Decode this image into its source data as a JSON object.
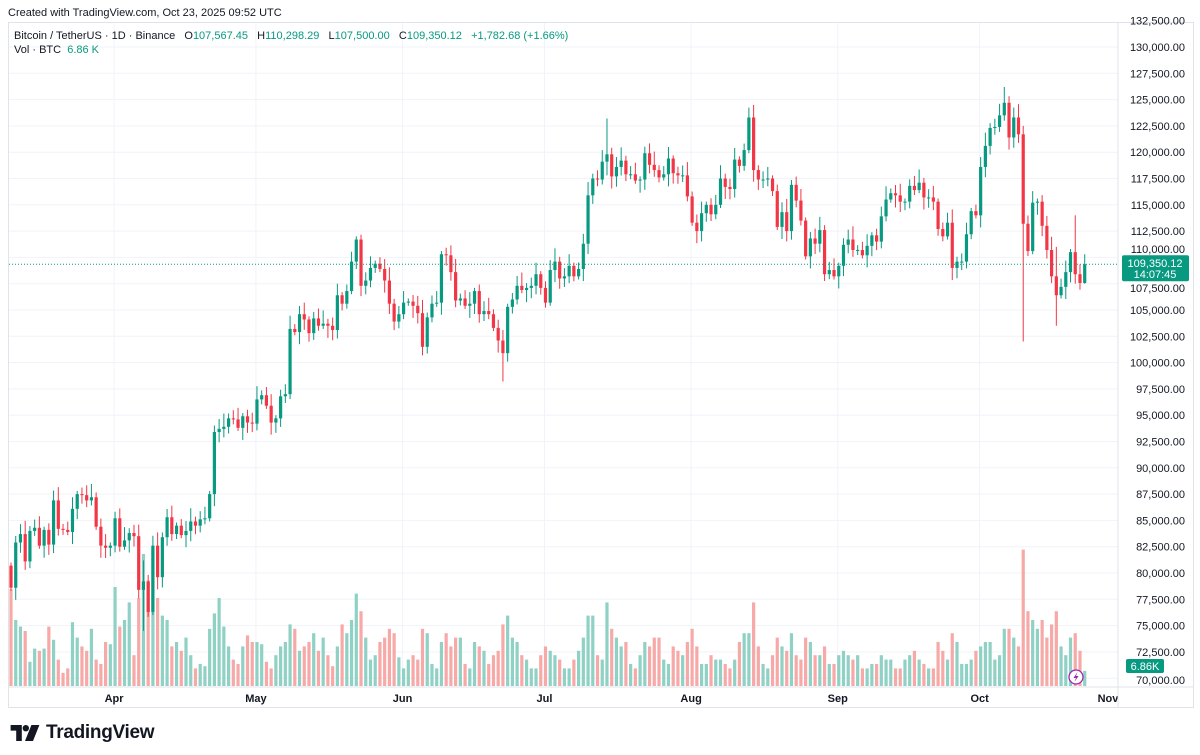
{
  "created_text": "Created with TradingView.com, Oct 23, 2025 09:52 UTC",
  "legend": {
    "symbol": "Bitcoin / TetherUS · 1D · Binance",
    "o_label": "O",
    "o": "107,567.45",
    "h_label": "H",
    "h": "110,298.29",
    "l_label": "L",
    "l": "107,500.00",
    "c_label": "C",
    "c": "109,350.12",
    "change": "+1,782.68 (+1.66%)",
    "vol_label": "Vol · BTC",
    "vol": "6.86 K"
  },
  "price_label": {
    "price": "109,350.12",
    "countdown": "14:07:45"
  },
  "volume_label": "6.86K",
  "brand": "TradingView",
  "colors": {
    "up": "#089981",
    "down": "#f23645",
    "up_volume": "#8fd1c4",
    "down_volume": "#f7a9a7",
    "grid": "#f0f3fa",
    "alert_icon": "#9c27b0"
  },
  "icons": {
    "alert": "lightning-icon",
    "logo": "tradingview-logo"
  },
  "chart_data": {
    "type": "candlestick",
    "symbol": "BTCUSDT",
    "interval": "1D",
    "first_date": "2025-03-10",
    "first_open": 80700,
    "close": [
      78600,
      82900,
      83700,
      81100,
      84000,
      84300,
      82600,
      84100,
      82700,
      86900,
      84200,
      84100,
      83900,
      86100,
      87500,
      87400,
      86900,
      87200,
      84400,
      82600,
      82400,
      82600,
      85200,
      82500,
      83100,
      83800,
      83500,
      78400,
      79200,
      76300,
      82600,
      79600,
      83400,
      85300,
      83700,
      84500,
      83600,
      84000,
      84900,
      84500,
      85100,
      85200,
      87500,
      93400,
      93700,
      93900,
      94700,
      94600,
      93800,
      94900,
      94300,
      94200,
      96500,
      96900,
      95900,
      94300,
      94700,
      96800,
      97000,
      103200,
      102900,
      104600,
      104100,
      102800,
      104200,
      103500,
      103700,
      103500,
      103100,
      106400,
      105600,
      106800,
      109600,
      111700,
      107300,
      107800,
      109000,
      109400,
      108900,
      107800,
      105600,
      103900,
      104600,
      105700,
      105800,
      105400,
      104700,
      101500,
      104300,
      105600,
      105700,
      110300,
      110200,
      108600,
      105900,
      106100,
      105400,
      105600,
      106800,
      104600,
      104900,
      104600,
      103300,
      102100,
      100900,
      105300,
      106000,
      107300,
      106900,
      107100,
      107300,
      108400,
      107100,
      105700,
      108800,
      109600,
      108000,
      108200,
      109200,
      108200,
      108900,
      111300,
      115900,
      117500,
      117400,
      119100,
      119800,
      117700,
      118600,
      119200,
      117900,
      117900,
      117300,
      117400,
      119900,
      118800,
      118300,
      117600,
      117900,
      119400,
      118000,
      117800,
      117800,
      115800,
      113300,
      112500,
      114200,
      115000,
      114100,
      115000,
      117500,
      116700,
      116500,
      119300,
      118700,
      120200,
      123300,
      118300,
      117400,
      117400,
      117500,
      116300,
      112900,
      114300,
      112500,
      116900,
      115400,
      113500,
      110100,
      111800,
      111300,
      112600,
      108400,
      108800,
      108200,
      109200,
      111200,
      111700,
      110700,
      110700,
      110200,
      111100,
      112100,
      111500,
      113900,
      115500,
      116100,
      115900,
      115300,
      115300,
      116800,
      116400,
      117100,
      115700,
      115700,
      115300,
      112700,
      112000,
      113300,
      109000,
      109600,
      109600,
      112200,
      114400,
      114000,
      118600,
      120600,
      122300,
      122400,
      123500,
      124700,
      121400,
      123300,
      121700,
      113200,
      110600,
      115200,
      115300,
      113000,
      110700,
      108200,
      106400,
      107200,
      108600,
      110500,
      108400,
      107567,
      109350
    ],
    "notable_extremes": {
      "2025-04-07": {
        "high": 81200,
        "low": 74500
      },
      "2025-05-22": {
        "high": 112000,
        "low": 108900
      },
      "2025-06-22": {
        "high": 103100,
        "low": 98200
      },
      "2025-07-14": {
        "high": 123200,
        "low": 117800
      },
      "2025-08-14": {
        "high": 124500,
        "low": 117200
      },
      "2025-10-06": {
        "high": 126200,
        "low": 123000
      },
      "2025-10-10": {
        "high": 122500,
        "low": 102000
      },
      "2025-10-17": {
        "high": 111000,
        "low": 103500
      },
      "2025-10-21": {
        "high": 114000,
        "low": 107500
      },
      "2025-10-23": {
        "high": 110298.29,
        "low": 107500
      }
    },
    "volume_thousands_btc": [
      44,
      30,
      27,
      25,
      11,
      17,
      16,
      17,
      27,
      21,
      12,
      6,
      8,
      29,
      22,
      18,
      16,
      26,
      12,
      10,
      20,
      19,
      45,
      27,
      30,
      38,
      14,
      40,
      60,
      48,
      62,
      40,
      32,
      30,
      18,
      20,
      16,
      22,
      14,
      8,
      10,
      9,
      26,
      33,
      40,
      27,
      18,
      12,
      10,
      18,
      23,
      20,
      20,
      19,
      11,
      8,
      14,
      18,
      20,
      28,
      26,
      16,
      18,
      20,
      24,
      16,
      22,
      14,
      9,
      18,
      28,
      24,
      30,
      42,
      34,
      22,
      12,
      14,
      20,
      22,
      26,
      24,
      13,
      8,
      12,
      14,
      12,
      26,
      24,
      10,
      8,
      20,
      24,
      18,
      22,
      22,
      10,
      8,
      20,
      18,
      16,
      10,
      14,
      16,
      28,
      32,
      22,
      20,
      14,
      12,
      8,
      8,
      14,
      18,
      16,
      14,
      12,
      8,
      8,
      12,
      16,
      22,
      32,
      32,
      14,
      12,
      38,
      26,
      22,
      18,
      20,
      10,
      8,
      14,
      20,
      18,
      22,
      22,
      12,
      10,
      18,
      16,
      14,
      20,
      26,
      18,
      10,
      10,
      14,
      12,
      12,
      10,
      8,
      12,
      20,
      24,
      24,
      38,
      18,
      10,
      8,
      14,
      22,
      18,
      16,
      24,
      14,
      12,
      22,
      20,
      14,
      14,
      18,
      10,
      10,
      14,
      16,
      14,
      12,
      14,
      8,
      8,
      10,
      10,
      14,
      12,
      12,
      8,
      8,
      12,
      14,
      16,
      12,
      10,
      8,
      8,
      20,
      16,
      12,
      24,
      20,
      10,
      10,
      12,
      16,
      18,
      20,
      20,
      12,
      14,
      26,
      26,
      22,
      18,
      62,
      34,
      30,
      26,
      30,
      22,
      28,
      34,
      18,
      14,
      22,
      24,
      16,
      6.86
    ],
    "y_tick_labels": [
      "70,000.00",
      "72,500.00",
      "75,000.00",
      "77,500.00",
      "80,000.00",
      "82,500.00",
      "85,000.00",
      "87,500.00",
      "90,000.00",
      "92,500.00",
      "95,000.00",
      "97,500.00",
      "100,000.00",
      "102,500.00",
      "105,000.00",
      "107,500.00",
      "110,000.00",
      "112,500.00",
      "115,000.00",
      "117,500.00",
      "120,000.00",
      "122,500.00",
      "125,000.00",
      "127,500.00",
      "130,000.00",
      "132,500.00"
    ],
    "y_range": [
      70000,
      132500
    ],
    "x_tick_labels": [
      {
        "date": "2025-04-01",
        "label": "Apr"
      },
      {
        "date": "2025-05-01",
        "label": "May"
      },
      {
        "date": "2025-06-01",
        "label": "Jun"
      },
      {
        "date": "2025-07-01",
        "label": "Jul"
      },
      {
        "date": "2025-08-01",
        "label": "Aug"
      },
      {
        "date": "2025-09-01",
        "label": "Sep"
      },
      {
        "date": "2025-10-01",
        "label": "Oct"
      },
      {
        "date": "2025-11-01",
        "label": "Nov"
      }
    ],
    "last_price": 109350.12,
    "grid": true
  }
}
